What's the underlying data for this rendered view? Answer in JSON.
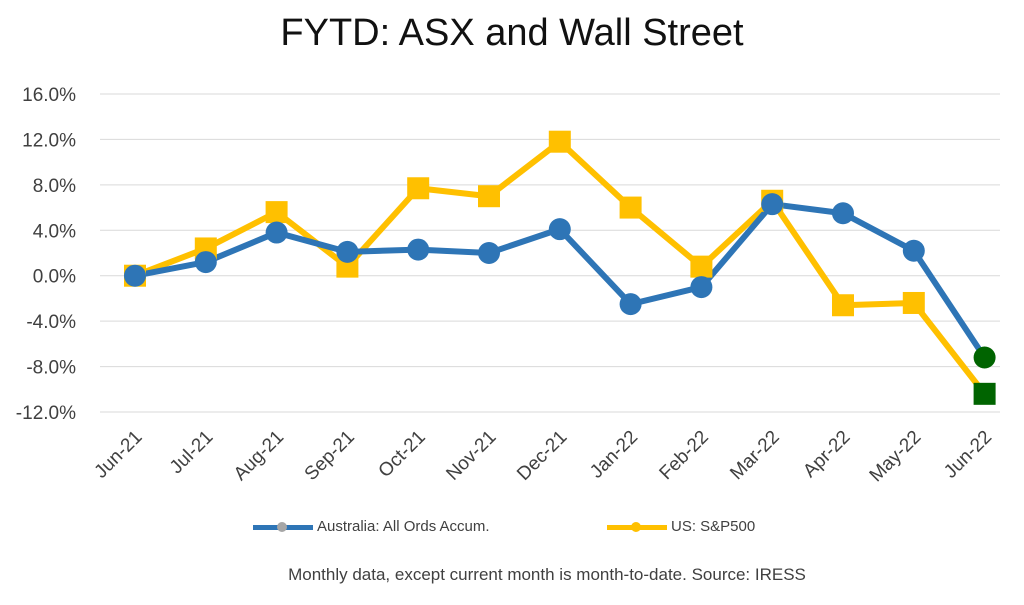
{
  "title": "FYTD: ASX and Wall Street",
  "source_note": "Monthly data, except current month is month-to-date.  Source: IRESS",
  "chart_data": {
    "type": "line",
    "categories": [
      "Jun-21",
      "Jul-21",
      "Aug-21",
      "Sep-21",
      "Oct-21",
      "Nov-21",
      "Dec-21",
      "Jan-22",
      "Feb-22",
      "Mar-22",
      "Apr-22",
      "May-22",
      "Jun-22"
    ],
    "y_ticks": [
      "16.0%",
      "12.0%",
      "8.0%",
      "4.0%",
      "0.0%",
      "-4.0%",
      "-8.0%",
      "-12.0%"
    ],
    "ylim": [
      -12,
      16
    ],
    "grid": true,
    "legend_position": "bottom",
    "series": [
      {
        "name": "Australia: All Ords Accum.",
        "color": "#2E75B6",
        "marker": "circle",
        "values": [
          0.0,
          1.2,
          3.8,
          2.1,
          2.3,
          2.0,
          4.1,
          -2.5,
          -1.0,
          6.3,
          5.5,
          2.2,
          -7.2
        ],
        "last_marker_color": "#006400"
      },
      {
        "name": "US: S&P500",
        "color": "#FFC000",
        "marker": "square",
        "values": [
          0.0,
          2.4,
          5.6,
          0.8,
          7.7,
          7.0,
          11.8,
          6.0,
          0.8,
          6.6,
          -2.6,
          -2.4,
          -10.4
        ],
        "last_marker_color": "#006400"
      }
    ]
  }
}
